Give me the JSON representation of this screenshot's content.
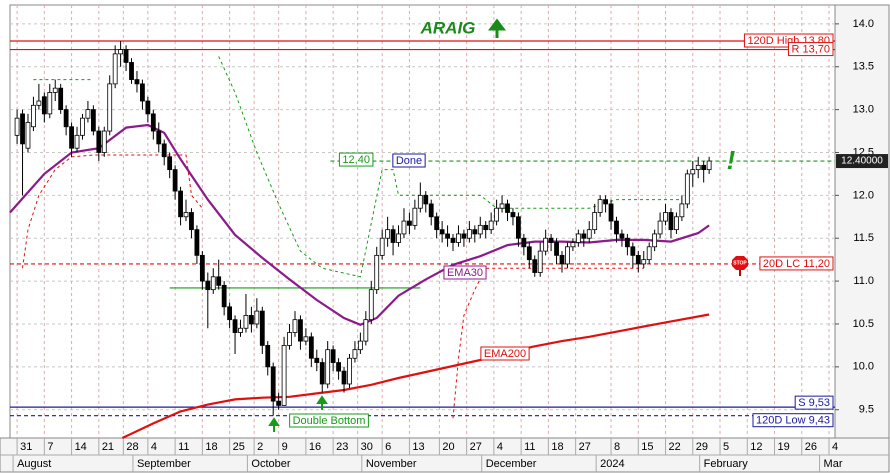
{
  "chart_data": {
    "type": "candlestick",
    "title": "ARAIG",
    "up_color": "#ffffff",
    "down_color": "#000000",
    "candles": [
      [
        12.7,
        13.0,
        12.6,
        12.9
      ],
      [
        12.95,
        13.0,
        12.0,
        12.6
      ],
      [
        12.55,
        12.95,
        12.5,
        12.85
      ],
      [
        12.8,
        13.15,
        12.75,
        13.05
      ],
      [
        13.05,
        13.3,
        13.0,
        13.1
      ],
      [
        13.15,
        13.2,
        12.85,
        12.95
      ],
      [
        12.95,
        13.3,
        12.9,
        13.2
      ],
      [
        13.2,
        13.35,
        13.1,
        13.25
      ],
      [
        13.25,
        13.3,
        12.95,
        13.0
      ],
      [
        13.0,
        13.05,
        12.7,
        12.8
      ],
      [
        12.8,
        12.85,
        12.45,
        12.55
      ],
      [
        12.55,
        12.8,
        12.5,
        12.7
      ],
      [
        12.7,
        12.95,
        12.65,
        12.9
      ],
      [
        12.9,
        13.1,
        12.85,
        13.0
      ],
      [
        13.0,
        13.05,
        12.7,
        12.75
      ],
      [
        12.75,
        12.8,
        12.4,
        12.5
      ],
      [
        12.5,
        12.8,
        12.45,
        12.75
      ],
      [
        12.75,
        13.4,
        12.7,
        13.3
      ],
      [
        13.3,
        13.75,
        13.25,
        13.65
      ],
      [
        13.65,
        13.8,
        13.5,
        13.7
      ],
      [
        13.7,
        13.75,
        13.45,
        13.55
      ],
      [
        13.55,
        13.6,
        13.3,
        13.35
      ],
      [
        13.35,
        13.45,
        13.2,
        13.3
      ],
      [
        13.3,
        13.35,
        13.0,
        13.1
      ],
      [
        13.1,
        13.15,
        12.85,
        12.95
      ],
      [
        12.95,
        13.0,
        12.65,
        12.75
      ],
      [
        12.75,
        12.85,
        12.5,
        12.6
      ],
      [
        12.6,
        12.65,
        12.35,
        12.45
      ],
      [
        12.45,
        12.5,
        12.2,
        12.3
      ],
      [
        12.3,
        12.35,
        11.95,
        12.05
      ],
      [
        12.05,
        12.1,
        11.65,
        11.75
      ],
      [
        11.75,
        11.95,
        11.7,
        11.8
      ],
      [
        11.8,
        11.85,
        11.5,
        11.6
      ],
      [
        11.6,
        11.65,
        11.2,
        11.3
      ],
      [
        11.3,
        11.35,
        10.9,
        11.0
      ],
      [
        11.0,
        11.1,
        10.45,
        10.9
      ],
      [
        10.9,
        11.15,
        10.85,
        11.05
      ],
      [
        11.05,
        11.25,
        10.9,
        10.95
      ],
      [
        10.95,
        11.0,
        10.6,
        10.7
      ],
      [
        10.7,
        10.75,
        10.45,
        10.55
      ],
      [
        10.55,
        10.6,
        10.15,
        10.4
      ],
      [
        10.4,
        10.55,
        10.35,
        10.45
      ],
      [
        10.45,
        10.85,
        10.4,
        10.6
      ],
      [
        10.6,
        10.7,
        10.4,
        10.5
      ],
      [
        10.5,
        10.8,
        10.45,
        10.65
      ],
      [
        10.65,
        10.7,
        10.15,
        10.25
      ],
      [
        10.25,
        10.3,
        9.9,
        10.0
      ],
      [
        10.0,
        10.05,
        9.43,
        9.6
      ],
      [
        9.6,
        9.7,
        9.5,
        9.55
      ],
      [
        9.55,
        10.35,
        9.55,
        10.25
      ],
      [
        10.25,
        10.5,
        10.2,
        10.4
      ],
      [
        10.4,
        10.65,
        10.35,
        10.55
      ],
      [
        10.55,
        10.6,
        10.2,
        10.3
      ],
      [
        10.3,
        10.45,
        10.25,
        10.35
      ],
      [
        10.35,
        10.4,
        10.0,
        10.1
      ],
      [
        10.1,
        10.2,
        9.95,
        10.05
      ],
      [
        10.05,
        10.1,
        9.7,
        9.8
      ],
      [
        9.8,
        10.3,
        9.75,
        10.2
      ],
      [
        10.2,
        10.25,
        9.95,
        10.05
      ],
      [
        10.05,
        10.1,
        9.85,
        9.95
      ],
      [
        9.95,
        10.0,
        9.7,
        9.8
      ],
      [
        9.8,
        10.15,
        9.75,
        10.1
      ],
      [
        10.1,
        10.3,
        10.05,
        10.2
      ],
      [
        10.2,
        10.4,
        10.15,
        10.3
      ],
      [
        10.3,
        10.65,
        10.25,
        10.55
      ],
      [
        10.55,
        11.0,
        10.5,
        10.9
      ],
      [
        10.9,
        11.4,
        10.85,
        11.3
      ],
      [
        11.3,
        11.6,
        11.25,
        11.5
      ],
      [
        11.5,
        11.75,
        11.4,
        11.6
      ],
      [
        11.6,
        11.65,
        11.3,
        11.45
      ],
      [
        11.45,
        11.65,
        11.4,
        11.55
      ],
      [
        11.55,
        11.85,
        11.5,
        11.7
      ],
      [
        11.7,
        11.8,
        11.55,
        11.65
      ],
      [
        11.65,
        11.95,
        11.6,
        11.85
      ],
      [
        11.85,
        12.15,
        11.8,
        12.0
      ],
      [
        12.0,
        12.05,
        11.8,
        11.9
      ],
      [
        11.9,
        11.95,
        11.65,
        11.75
      ],
      [
        11.75,
        11.8,
        11.5,
        11.6
      ],
      [
        11.6,
        11.7,
        11.45,
        11.55
      ],
      [
        11.55,
        11.65,
        11.4,
        11.5
      ],
      [
        11.5,
        11.55,
        11.35,
        11.45
      ],
      [
        11.45,
        11.65,
        11.4,
        11.55
      ],
      [
        11.55,
        11.6,
        11.4,
        11.5
      ],
      [
        11.5,
        11.7,
        11.45,
        11.6
      ],
      [
        11.6,
        11.65,
        11.45,
        11.55
      ],
      [
        11.55,
        11.75,
        11.5,
        11.65
      ],
      [
        11.65,
        11.7,
        11.5,
        11.6
      ],
      [
        11.6,
        11.8,
        11.55,
        11.7
      ],
      [
        11.7,
        11.95,
        11.65,
        11.85
      ],
      [
        11.85,
        12.0,
        11.8,
        11.9
      ],
      [
        11.9,
        11.95,
        11.7,
        11.8
      ],
      [
        11.8,
        11.85,
        11.65,
        11.75
      ],
      [
        11.75,
        11.8,
        11.4,
        11.5
      ],
      [
        11.5,
        11.55,
        11.3,
        11.4
      ],
      [
        11.4,
        11.45,
        11.15,
        11.25
      ],
      [
        11.25,
        11.3,
        11.05,
        11.1
      ],
      [
        11.1,
        11.45,
        11.05,
        11.35
      ],
      [
        11.35,
        11.6,
        11.3,
        11.5
      ],
      [
        11.5,
        11.55,
        11.35,
        11.45
      ],
      [
        11.45,
        11.5,
        11.2,
        11.3
      ],
      [
        11.3,
        11.35,
        11.1,
        11.2
      ],
      [
        11.2,
        11.45,
        11.15,
        11.4
      ],
      [
        11.4,
        11.5,
        11.35,
        11.45
      ],
      [
        11.45,
        11.6,
        11.4,
        11.55
      ],
      [
        11.55,
        11.6,
        11.4,
        11.5
      ],
      [
        11.5,
        11.7,
        11.45,
        11.6
      ],
      [
        11.6,
        11.9,
        11.55,
        11.8
      ],
      [
        11.8,
        12.0,
        11.75,
        11.95
      ],
      [
        11.95,
        12.0,
        11.8,
        11.9
      ],
      [
        11.9,
        11.95,
        11.6,
        11.7
      ],
      [
        11.7,
        11.75,
        11.45,
        11.55
      ],
      [
        11.55,
        11.6,
        11.4,
        11.5
      ],
      [
        11.5,
        11.55,
        11.3,
        11.4
      ],
      [
        11.4,
        11.45,
        11.15,
        11.3
      ],
      [
        11.3,
        11.35,
        11.1,
        11.2
      ],
      [
        11.2,
        11.35,
        11.15,
        11.25
      ],
      [
        11.25,
        11.45,
        11.2,
        11.4
      ],
      [
        11.4,
        11.6,
        11.35,
        11.55
      ],
      [
        11.55,
        11.8,
        11.5,
        11.7
      ],
      [
        11.7,
        11.9,
        11.65,
        11.8
      ],
      [
        11.8,
        11.85,
        11.5,
        11.6
      ],
      [
        11.6,
        11.8,
        11.55,
        11.75
      ],
      [
        11.75,
        12.0,
        11.7,
        11.9
      ],
      [
        11.9,
        12.3,
        11.85,
        12.25
      ],
      [
        12.25,
        12.4,
        12.1,
        12.3
      ],
      [
        12.3,
        12.45,
        12.2,
        12.35
      ],
      [
        12.35,
        12.4,
        12.15,
        12.3
      ],
      [
        12.3,
        12.45,
        12.25,
        12.4
      ]
    ],
    "lines": [
      {
        "name": "EMA30",
        "color": "#8b1a8b",
        "x": [
          -1.3,
          5,
          10,
          15,
          20,
          24,
          27,
          30,
          35,
          40,
          45,
          50,
          55,
          60,
          63,
          66,
          70,
          75,
          80,
          85,
          90,
          95,
          100,
          105,
          110,
          115,
          120,
          125,
          127
        ],
        "values": [
          11.8,
          12.25,
          12.5,
          12.55,
          12.79,
          12.82,
          12.73,
          12.42,
          11.95,
          11.54,
          11.27,
          11.02,
          10.78,
          10.57,
          10.49,
          10.57,
          10.83,
          11.02,
          11.19,
          11.29,
          11.42,
          11.46,
          11.46,
          11.45,
          11.48,
          11.48,
          11.46,
          11.56,
          11.65
        ]
      },
      {
        "name": "EMA200",
        "color": "#e01010",
        "x": [
          19.3,
          25,
          30,
          35,
          40,
          45,
          50,
          55,
          60,
          65,
          70,
          75,
          80,
          85,
          90,
          95,
          100,
          105,
          110,
          115,
          120,
          127
        ],
        "values": [
          9.17,
          9.34,
          9.48,
          9.56,
          9.62,
          9.64,
          9.65,
          9.69,
          9.73,
          9.79,
          9.87,
          9.94,
          10.01,
          10.08,
          10.17,
          10.24,
          10.3,
          10.35,
          10.41,
          10.47,
          10.53,
          10.61
        ]
      }
    ],
    "stops": [
      {
        "color": "#1a9a1a",
        "x": [
          3,
          14,
          null,
          37,
          40,
          44,
          48,
          52,
          56,
          63,
          67,
          69,
          70,
          85,
          88,
          105,
          110,
          122
        ],
        "values": [
          13.35,
          13.35,
          null,
          13.62,
          13.2,
          12.5,
          11.9,
          11.35,
          11.15,
          11.05,
          12.3,
          12.3,
          12.0,
          12.0,
          11.85,
          11.85,
          11.95,
          11.95
        ]
      },
      {
        "color": "#e01010",
        "x": [
          1,
          2,
          4,
          7,
          10,
          14,
          31,
          32,
          34,
          null,
          80,
          81,
          82,
          84,
          86,
          90,
          100,
          115
        ],
        "values": [
          11.15,
          11.6,
          12.0,
          12.3,
          12.45,
          12.47,
          12.47,
          12.0,
          11.85,
          null,
          9.4,
          10.1,
          10.6,
          10.9,
          11.15,
          11.15,
          11.15,
          11.15
        ]
      }
    ],
    "levels": [
      {
        "label": "120D High 13,80",
        "value": 13.8,
        "color": "#e01010",
        "dashed": false
      },
      {
        "label": "R 13,70",
        "value": 13.7,
        "color": "#e01010",
        "dashed": false
      },
      {
        "label": "20D LC 11,20",
        "value": 11.2,
        "color": "#e01010",
        "dashed": true
      },
      {
        "label": "S 9,53",
        "value": 9.53,
        "color": "#1a1aa0",
        "dashed": false
      },
      {
        "label": "120D Low 9,43",
        "value": 9.43,
        "color": "#1a1aa0",
        "dashed": true
      },
      {
        "label": "12,40",
        "value": 12.4,
        "color": "#1a9a1a",
        "dashed": true,
        "from": 57.5
      },
      {
        "value": 10.92,
        "color": "#1a9a1a",
        "dashed": false,
        "from": 28,
        "to": 74
      }
    ],
    "last_price": {
      "value": 12.4,
      "label": "12.40000"
    },
    "annotations": [
      "Done",
      "Double Bottom",
      "!"
    ],
    "xlim": [
      -1.3,
      150.1
    ],
    "ylim": [
      9.17,
      14.22
    ],
    "yticks": [
      9.5,
      {
        "value": 10,
        "label": "10.0"
      },
      10.5,
      {
        "value": 11,
        "label": "11.0"
      },
      11.5,
      {
        "value": 12,
        "label": "12.0"
      },
      12.5,
      {
        "value": 13,
        "label": "13.0"
      },
      13.5,
      {
        "value": 14,
        "label": "14.0"
      }
    ],
    "xticks": [
      {
        "value": 0,
        "label": "31"
      },
      {
        "value": 5,
        "label": "7"
      },
      {
        "value": 10,
        "label": "14"
      },
      {
        "value": 15,
        "label": "21"
      },
      {
        "value": 19.5,
        "label": "28"
      },
      {
        "value": 24,
        "label": "4"
      },
      {
        "value": 29,
        "label": "11"
      },
      {
        "value": 34,
        "label": "18"
      },
      {
        "value": 39,
        "label": "25"
      },
      {
        "value": 43.5,
        "label": "2"
      },
      {
        "value": 48,
        "label": "9"
      },
      {
        "value": 53,
        "label": "16"
      },
      {
        "value": 58,
        "label": "23"
      },
      {
        "value": 62.5,
        "label": "30"
      },
      {
        "value": 67,
        "label": "6"
      },
      {
        "value": 72,
        "label": "13"
      },
      {
        "value": 77.5,
        "label": "20"
      },
      {
        "value": 82.5,
        "label": "27"
      },
      {
        "value": 87.5,
        "label": "4"
      },
      {
        "value": 92.5,
        "label": "11"
      },
      {
        "value": 97.5,
        "label": "18"
      },
      {
        "value": 102.5,
        "label": "27"
      },
      {
        "value": 109,
        "label": "8"
      },
      {
        "value": 114,
        "label": "15"
      },
      {
        "value": 119,
        "label": "22"
      },
      {
        "value": 124,
        "label": "29"
      },
      {
        "value": 129,
        "label": "5"
      },
      {
        "value": 134,
        "label": "12"
      },
      {
        "value": 139,
        "label": "19"
      },
      {
        "value": 144,
        "label": "26"
      },
      {
        "value": 149,
        "label": "4"
      }
    ],
    "month_labels": [
      {
        "value": 0,
        "label": "August"
      },
      {
        "value": 22,
        "label": "September"
      },
      {
        "value": 43,
        "label": "October"
      },
      {
        "value": 64,
        "label": "November"
      },
      {
        "value": 86,
        "label": "December"
      },
      {
        "value": 107,
        "label": "2024"
      },
      {
        "value": 126,
        "label": "February"
      },
      {
        "value": 148,
        "label": "Mar"
      }
    ],
    "grid": true
  }
}
